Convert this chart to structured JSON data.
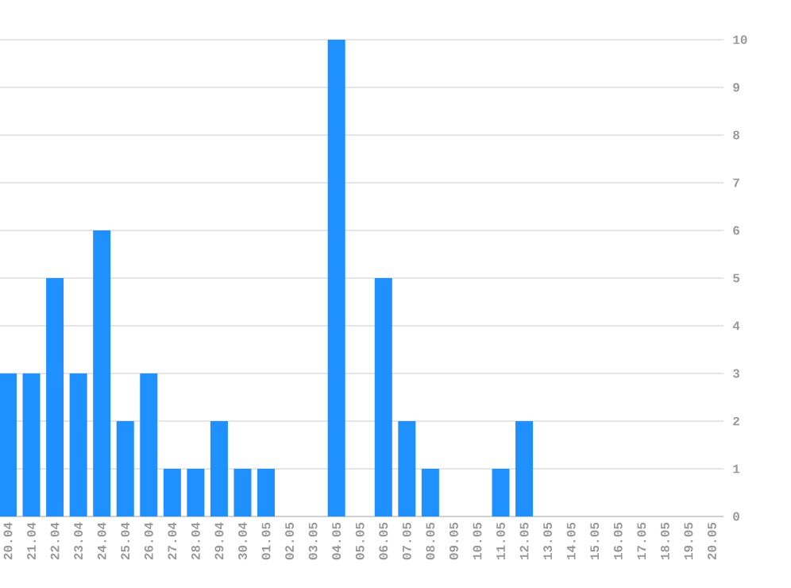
{
  "chart_data": {
    "type": "bar",
    "categories": [
      "20.04",
      "21.04",
      "22.04",
      "23.04",
      "24.04",
      "25.04",
      "26.04",
      "27.04",
      "28.04",
      "29.04",
      "30.04",
      "01.05",
      "02.05",
      "03.05",
      "04.05",
      "05.05",
      "06.05",
      "07.05",
      "08.05",
      "09.05",
      "10.05",
      "11.05",
      "12.05",
      "13.05",
      "14.05",
      "15.05",
      "16.05",
      "17.05",
      "18.05",
      "19.05",
      "20.05"
    ],
    "values": [
      3,
      3,
      5,
      3,
      6,
      2,
      3,
      1,
      1,
      2,
      1,
      1,
      0,
      0,
      10,
      0,
      5,
      2,
      1,
      0,
      0,
      1,
      2,
      0,
      0,
      0,
      0,
      0,
      0,
      0,
      0
    ],
    "color": "#1e90ff",
    "ylim": [
      0,
      10
    ],
    "yticks": [
      0,
      1,
      2,
      3,
      4,
      5,
      6,
      7,
      8,
      9,
      10
    ],
    "grid": "y"
  }
}
